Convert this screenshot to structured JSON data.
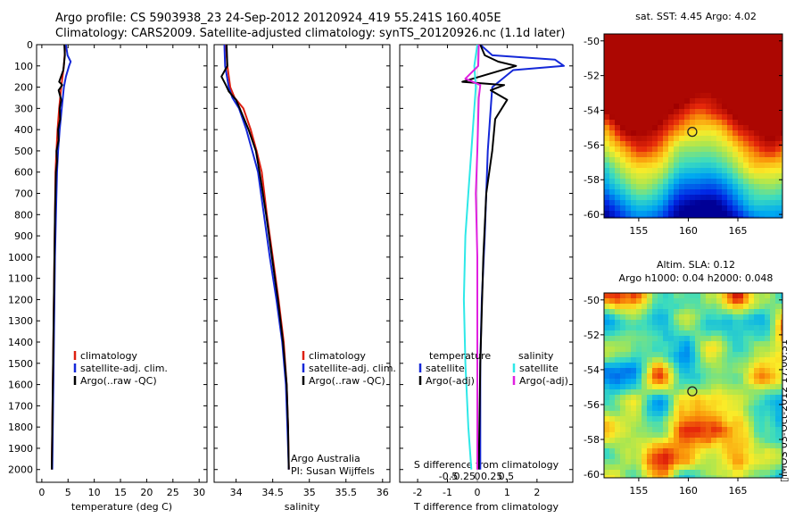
{
  "header": {
    "line1": "Argo profile: CS 5903938_23 24-Sep-2012 20120924_419 55.241S 160.405E",
    "line2": "Climatology: CARS2009. Satellite-adjusted climatology: synTS_20120926.nc (1.1d later)"
  },
  "colors": {
    "climatology": "#dd1f10",
    "satellite": "#1428d8",
    "argo": "#000000",
    "cyan": "#2ee8e8",
    "magenta": "#e020e0",
    "marker": "#222222"
  },
  "chart_data": [
    {
      "type": "line",
      "id": "temperature",
      "xlabel": "temperature (deg C)",
      "ylabel": "",
      "xlim": [
        -1,
        31.5
      ],
      "ylim": [
        2060,
        0
      ],
      "xticks": [
        0,
        5,
        10,
        15,
        20,
        25,
        30
      ],
      "yticks": [
        0,
        100,
        200,
        300,
        400,
        500,
        600,
        700,
        800,
        900,
        1000,
        1100,
        1200,
        1300,
        1400,
        1500,
        1600,
        1700,
        1800,
        1900,
        2000
      ],
      "legend": [
        "climatology",
        "satellite-adj. clim.",
        "Argo(..raw -QC)"
      ],
      "series": [
        {
          "name": "climatology",
          "color_key": "climatology",
          "points": [
            [
              4.5,
              0
            ],
            [
              4.2,
              100
            ],
            [
              3.7,
              200
            ],
            [
              3.3,
              300
            ],
            [
              3.0,
              400
            ],
            [
              2.8,
              500
            ],
            [
              2.6,
              600
            ],
            [
              2.5,
              800
            ],
            [
              2.4,
              1000
            ],
            [
              2.3,
              1200
            ],
            [
              2.2,
              1400
            ],
            [
              2.1,
              1600
            ],
            [
              2.0,
              1800
            ],
            [
              1.9,
              2000
            ]
          ]
        },
        {
          "name": "satellite-adj. clim.",
          "color_key": "satellite",
          "points": [
            [
              4.6,
              0
            ],
            [
              4.9,
              50
            ],
            [
              5.5,
              80
            ],
            [
              5.2,
              100
            ],
            [
              4.6,
              150
            ],
            [
              4.2,
              200
            ],
            [
              3.8,
              300
            ],
            [
              3.4,
              400
            ],
            [
              3.1,
              500
            ],
            [
              2.9,
              600
            ],
            [
              2.7,
              800
            ],
            [
              2.5,
              1000
            ],
            [
              2.4,
              1200
            ],
            [
              2.3,
              1400
            ],
            [
              2.2,
              1600
            ],
            [
              2.1,
              1800
            ],
            [
              2.0,
              2000
            ]
          ]
        },
        {
          "name": "Argo(..raw -QC)",
          "color_key": "argo",
          "points": [
            [
              4.3,
              0
            ],
            [
              4.4,
              50
            ],
            [
              4.1,
              120
            ],
            [
              3.3,
              175
            ],
            [
              3.9,
              190
            ],
            [
              3.2,
              215
            ],
            [
              3.7,
              260
            ],
            [
              3.4,
              300
            ],
            [
              3.5,
              350
            ],
            [
              3.1,
              400
            ],
            [
              3.2,
              450
            ],
            [
              2.8,
              500
            ],
            [
              2.9,
              550
            ],
            [
              2.7,
              600
            ],
            [
              2.5,
              800
            ],
            [
              2.4,
              1000
            ],
            [
              2.3,
              1200
            ],
            [
              2.2,
              1400
            ],
            [
              2.1,
              1600
            ],
            [
              2.0,
              1800
            ],
            [
              1.9,
              2000
            ]
          ]
        }
      ]
    },
    {
      "type": "line",
      "id": "salinity",
      "xlabel": "salinity",
      "ylabel": "",
      "xlim": [
        33.7,
        36.1
      ],
      "ylim": [
        2060,
        0
      ],
      "xticks": [
        34,
        34.5,
        35,
        35.5,
        36
      ],
      "xticklabels": [
        "34",
        "34.5",
        "35",
        "35.5",
        "36"
      ],
      "legend": [
        "climatology",
        "satellite-adj. clim.",
        "Argo(..raw -QC)"
      ],
      "annotation": [
        "Argo Australia",
        "PI: Susan Wijffels"
      ],
      "series": [
        {
          "name": "climatology",
          "color_key": "climatology",
          "points": [
            [
              33.86,
              0
            ],
            [
              33.88,
              100
            ],
            [
              33.92,
              200
            ],
            [
              33.98,
              250
            ],
            [
              34.1,
              300
            ],
            [
              34.2,
              400
            ],
            [
              34.28,
              500
            ],
            [
              34.35,
              600
            ],
            [
              34.42,
              800
            ],
            [
              34.5,
              1000
            ],
            [
              34.58,
              1200
            ],
            [
              34.65,
              1400
            ],
            [
              34.69,
              1600
            ],
            [
              34.71,
              1800
            ],
            [
              34.72,
              2000
            ]
          ]
        },
        {
          "name": "satellite-adj. clim.",
          "color_key": "satellite",
          "points": [
            [
              33.84,
              0
            ],
            [
              33.85,
              100
            ],
            [
              33.9,
              200
            ],
            [
              33.95,
              250
            ],
            [
              34.04,
              300
            ],
            [
              34.14,
              400
            ],
            [
              34.22,
              500
            ],
            [
              34.3,
              600
            ],
            [
              34.38,
              800
            ],
            [
              34.46,
              1000
            ],
            [
              34.55,
              1200
            ],
            [
              34.63,
              1400
            ],
            [
              34.68,
              1600
            ],
            [
              34.7,
              1800
            ],
            [
              34.72,
              2000
            ]
          ]
        },
        {
          "name": "Argo(..raw -QC)",
          "color_key": "argo",
          "points": [
            [
              33.87,
              0
            ],
            [
              33.88,
              100
            ],
            [
              33.8,
              150
            ],
            [
              33.86,
              190
            ],
            [
              33.9,
              220
            ],
            [
              34.0,
              260
            ],
            [
              34.05,
              300
            ],
            [
              34.17,
              400
            ],
            [
              34.27,
              500
            ],
            [
              34.32,
              600
            ],
            [
              34.41,
              800
            ],
            [
              34.49,
              1000
            ],
            [
              34.57,
              1200
            ],
            [
              34.64,
              1400
            ],
            [
              34.69,
              1600
            ],
            [
              34.71,
              1800
            ],
            [
              34.72,
              2000
            ]
          ]
        }
      ]
    },
    {
      "type": "line",
      "id": "difference",
      "xlabel": "T difference from climatology",
      "xlabel2": "S difference from climatology",
      "xlim": [
        -2.6,
        3.2
      ],
      "ylim": [
        2060,
        0
      ],
      "xticks": [
        -2,
        -1,
        0,
        1,
        2
      ],
      "xticks2": [
        -0.5,
        -0.25,
        0,
        0.25,
        0.5
      ],
      "xticklabels2": [
        "-0.5",
        "-0.25",
        "0",
        "0.25",
        "0.5"
      ],
      "legend_headers": [
        "temperature",
        "salinity"
      ],
      "legend": [
        "satellite",
        "Argo(-adj)",
        "satellite",
        "Argo(-adj)"
      ],
      "series": [
        {
          "name": "satellite",
          "group": "temperature",
          "color_key": "satellite",
          "points": [
            [
              0.1,
              0
            ],
            [
              0.5,
              50
            ],
            [
              2.6,
              70
            ],
            [
              2.9,
              100
            ],
            [
              1.2,
              120
            ],
            [
              0.5,
              200
            ],
            [
              0.45,
              300
            ],
            [
              0.35,
              500
            ],
            [
              0.3,
              700
            ],
            [
              0.25,
              900
            ],
            [
              0.15,
              1200
            ],
            [
              0.1,
              1500
            ],
            [
              0.1,
              2000
            ]
          ]
        },
        {
          "name": "Argo(-adj)",
          "group": "temperature",
          "color_key": "argo",
          "points": [
            [
              0.1,
              0
            ],
            [
              0.25,
              50
            ],
            [
              0.7,
              80
            ],
            [
              1.3,
              100
            ],
            [
              -0.5,
              175
            ],
            [
              0.9,
              190
            ],
            [
              0.45,
              215
            ],
            [
              1.0,
              260
            ],
            [
              0.6,
              350
            ],
            [
              0.5,
              500
            ],
            [
              0.3,
              700
            ],
            [
              0.2,
              1000
            ],
            [
              0.1,
              1500
            ],
            [
              0.05,
              2000
            ]
          ]
        },
        {
          "name": "satellite",
          "group": "salinity",
          "color_key": "cyan",
          "points": [
            [
              0.0,
              0
            ],
            [
              -0.1,
              100
            ],
            [
              -0.05,
              200
            ],
            [
              -0.1,
              300
            ],
            [
              -0.2,
              500
            ],
            [
              -0.3,
              700
            ],
            [
              -0.4,
              900
            ],
            [
              -0.45,
              1200
            ],
            [
              -0.4,
              1500
            ],
            [
              -0.3,
              1800
            ],
            [
              -0.2,
              2000
            ]
          ]
        },
        {
          "name": "Argo(-adj)",
          "group": "salinity",
          "color_key": "magenta",
          "points": [
            [
              0.05,
              0
            ],
            [
              0.03,
              100
            ],
            [
              -0.4,
              160
            ],
            [
              0.1,
              190
            ],
            [
              0.05,
              250
            ],
            [
              0.0,
              500
            ],
            [
              -0.05,
              700
            ],
            [
              0.0,
              1000
            ],
            [
              0.0,
              1500
            ],
            [
              0.0,
              2000
            ]
          ]
        }
      ]
    },
    {
      "type": "heatmap",
      "id": "sst-map",
      "title": "sat. SST: 4.45 Argo: 4.02",
      "xticks": [
        155,
        160,
        165
      ],
      "yticks": [
        -50,
        -52,
        -54,
        -56,
        -58,
        -60
      ],
      "xlim": [
        151.5,
        169.5
      ],
      "ylim": [
        -60.2,
        -49.6
      ],
      "marker": [
        160.4,
        -55.24
      ]
    },
    {
      "type": "heatmap",
      "id": "sla-map",
      "title": "Altim. SLA: 0.12",
      "subtitle": "Argo h1000: 0.04 h2000: 0.048",
      "xticks": [
        155,
        160,
        165
      ],
      "yticks": [
        -50,
        -52,
        -54,
        -56,
        -58,
        -60
      ],
      "xlim": [
        151.5,
        169.5
      ],
      "ylim": [
        -60.2,
        -49.6
      ],
      "marker": [
        160.4,
        -55.24
      ]
    }
  ],
  "footer_stamp": "IMOS 03-Oct-2012 17:00:31"
}
